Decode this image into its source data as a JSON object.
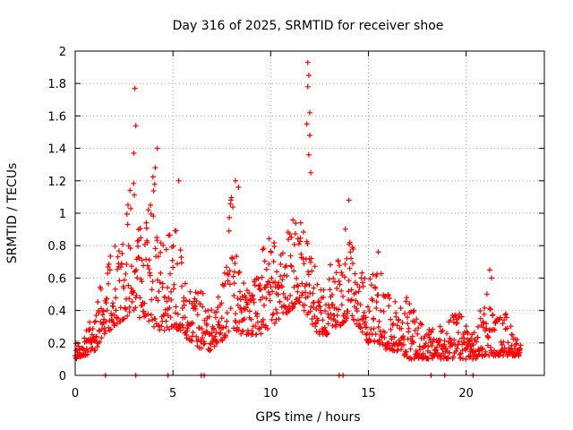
{
  "chart_data": {
    "type": "scatter",
    "title": "Day 316 of 2025, SRMTID for receiver shoe",
    "xlabel": "GPS time / hours",
    "ylabel": "SRMTID / TECUs",
    "xlim": [
      0,
      24
    ],
    "ylim": [
      0,
      2
    ],
    "xticks": [
      0,
      5,
      10,
      15,
      20
    ],
    "xtick_labels": [
      "0",
      "5",
      "10",
      "15",
      "20"
    ],
    "yticks": [
      0,
      0.2,
      0.4,
      0.6,
      0.8,
      1,
      1.2,
      1.4,
      1.6,
      1.8,
      2
    ],
    "ytick_labels": [
      "0",
      "0.2",
      "0.4",
      "0.6",
      "0.8",
      "1",
      "1.2",
      "1.4",
      "1.6",
      "1.8",
      "2"
    ],
    "grid": true,
    "marker": "plus",
    "color": "#ff0000",
    "series": [
      {
        "name": "SRMTID",
        "envelope": {
          "x": [
            0.0,
            0.5,
            1.0,
            1.5,
            2.0,
            2.5,
            3.0,
            3.5,
            4.0,
            4.5,
            5.0,
            5.5,
            6.0,
            6.5,
            7.0,
            7.5,
            8.0,
            8.5,
            9.0,
            9.5,
            10.0,
            10.5,
            11.0,
            11.5,
            12.0,
            12.5,
            13.0,
            13.5,
            14.0,
            14.5,
            15.0,
            15.5,
            16.0,
            16.5,
            17.0,
            17.5,
            18.0,
            18.5,
            19.0,
            19.5,
            20.0,
            20.5,
            21.0,
            21.5,
            22.0,
            22.5,
            22.8
          ],
          "low": [
            0.1,
            0.12,
            0.15,
            0.25,
            0.3,
            0.35,
            0.4,
            0.3,
            0.3,
            0.25,
            0.3,
            0.25,
            0.2,
            0.15,
            0.15,
            0.2,
            0.3,
            0.25,
            0.25,
            0.25,
            0.3,
            0.35,
            0.4,
            0.45,
            0.3,
            0.25,
            0.25,
            0.3,
            0.35,
            0.3,
            0.2,
            0.2,
            0.15,
            0.15,
            0.1,
            0.1,
            0.1,
            0.1,
            0.1,
            0.1,
            0.1,
            0.1,
            0.12,
            0.12,
            0.12,
            0.12,
            0.12
          ],
          "high": [
            0.2,
            0.25,
            0.45,
            0.65,
            0.85,
            0.95,
            1.3,
            0.85,
            1.25,
            0.85,
            1.1,
            0.7,
            0.5,
            0.55,
            0.4,
            0.55,
            1.15,
            0.6,
            0.5,
            0.75,
            0.9,
            0.75,
            0.95,
            1.0,
            0.85,
            0.55,
            0.7,
            0.8,
            1.0,
            0.65,
            0.6,
            0.7,
            0.5,
            0.45,
            0.5,
            0.35,
            0.3,
            0.28,
            0.35,
            0.4,
            0.35,
            0.25,
            0.6,
            0.35,
            0.4,
            0.25,
            0.2
          ]
        },
        "peaks": [
          {
            "x": 3.05,
            "y": 1.77
          },
          {
            "x": 3.1,
            "y": 1.54
          },
          {
            "x": 3.0,
            "y": 1.37
          },
          {
            "x": 4.2,
            "y": 1.4
          },
          {
            "x": 4.1,
            "y": 1.28
          },
          {
            "x": 5.3,
            "y": 1.2
          },
          {
            "x": 8.2,
            "y": 1.2
          },
          {
            "x": 8.35,
            "y": 1.16
          },
          {
            "x": 11.9,
            "y": 1.93
          },
          {
            "x": 11.95,
            "y": 1.85
          },
          {
            "x": 11.9,
            "y": 1.78
          },
          {
            "x": 12.0,
            "y": 1.62
          },
          {
            "x": 11.85,
            "y": 1.55
          },
          {
            "x": 12.0,
            "y": 1.48
          },
          {
            "x": 11.95,
            "y": 1.36
          },
          {
            "x": 12.05,
            "y": 1.25
          },
          {
            "x": 14.0,
            "y": 1.08
          },
          {
            "x": 15.5,
            "y": 0.76
          },
          {
            "x": 21.2,
            "y": 0.65
          },
          {
            "x": 21.3,
            "y": 0.6
          }
        ],
        "baseline_x": [
          1.55,
          3.1,
          4.75,
          6.45,
          6.6,
          13.5,
          13.7,
          18.2,
          18.9,
          20.35
        ]
      }
    ]
  }
}
